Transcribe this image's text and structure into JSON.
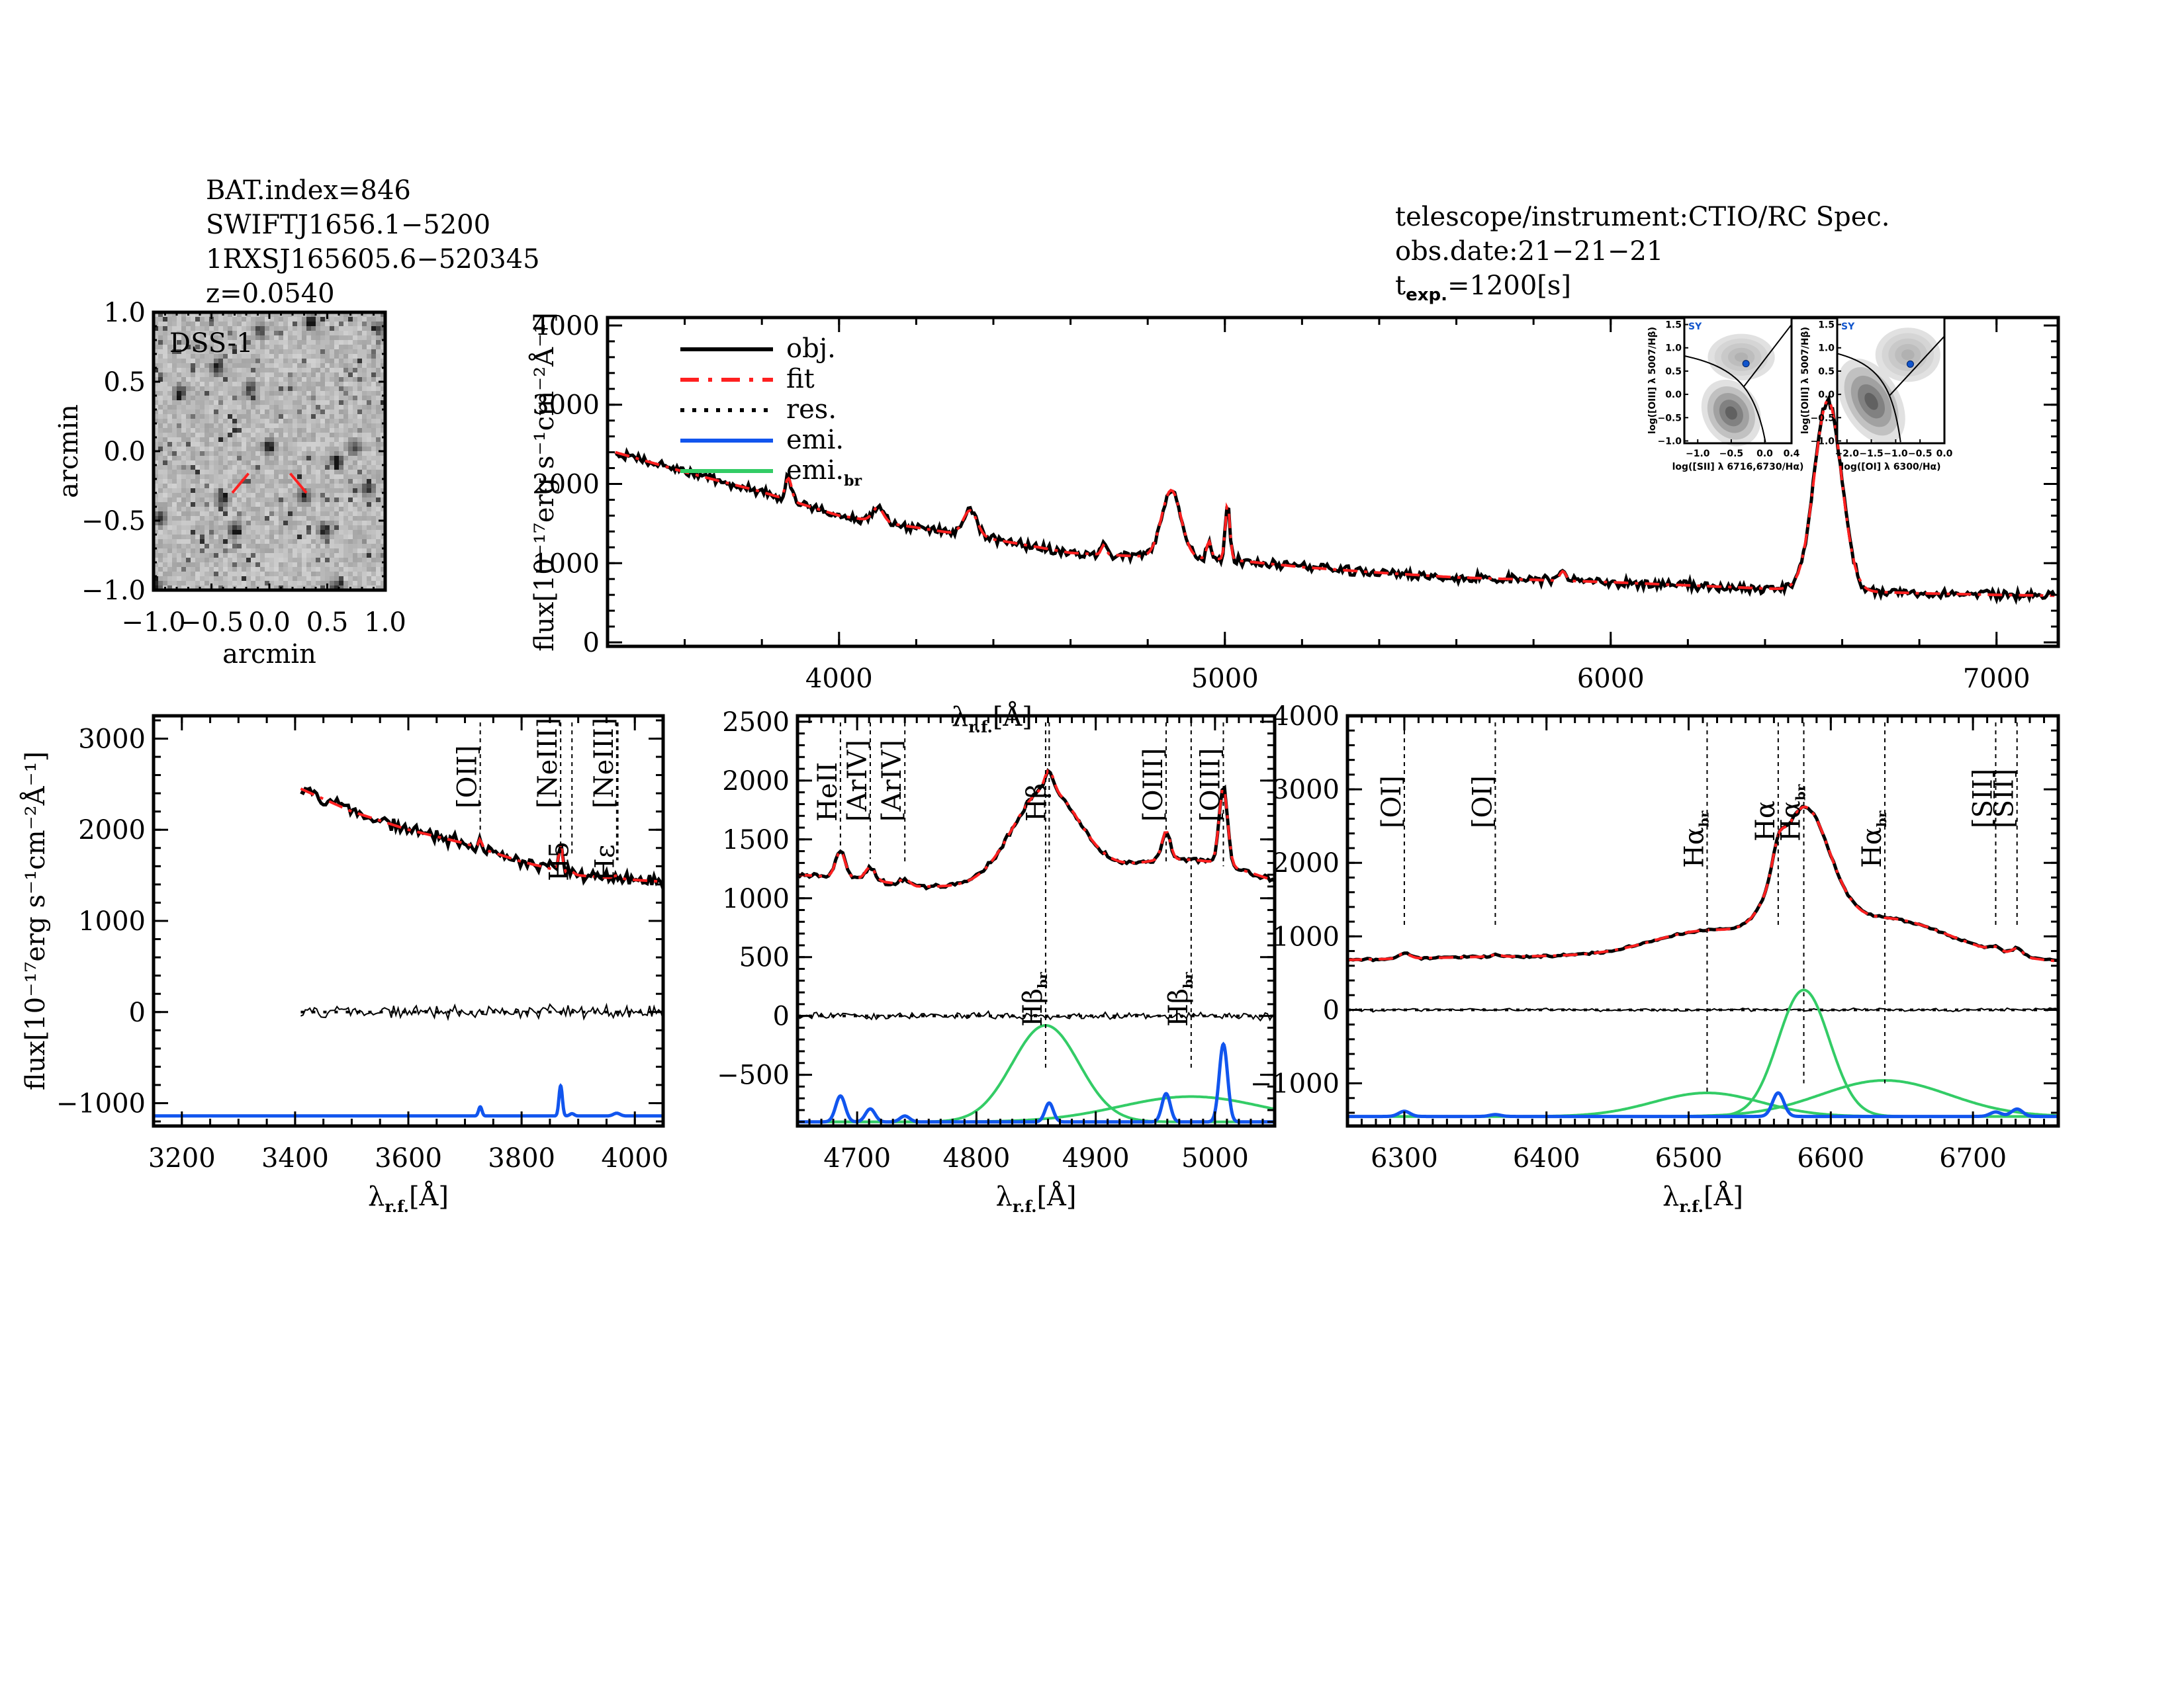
{
  "header_left": {
    "lines": [
      "BAT.index=846",
      "SWIFTJ1656.1−5200",
      "1RXSJ165605.6−520345",
      "z=0.0540"
    ]
  },
  "header_right": {
    "telescope": "telescope/instrument:CTIO/RC Spec.",
    "obs_date": "obs.date:21−21−21",
    "texp_main": "t",
    "texp_sub": "exp.",
    "texp_value": "=1200[s]"
  },
  "colors": {
    "obj": "#000000",
    "fit": "#ff2020",
    "res": "#000000",
    "emi": "#1155ee",
    "emi_br": "#33cc66",
    "marker": "#ff2020",
    "bpt_point": "#1155cc",
    "bpt_label": "#1155cc"
  },
  "chart_data": [
    {
      "id": "dss-image",
      "type": "heatmap",
      "title": "DSS-1",
      "xlabel": "arcmin",
      "ylabel": "arcmin",
      "xlim": [
        -1.0,
        1.0
      ],
      "ylim": [
        -1.0,
        1.0
      ],
      "xticks": [
        "−1.0",
        "−0.5",
        "0.0",
        "0.5",
        "1.0"
      ],
      "yticks": [
        "−1.0",
        "−0.5",
        "0.0",
        "0.5",
        "1.0"
      ],
      "xtick_values": [
        -1.0,
        -0.5,
        0.0,
        0.5,
        1.0
      ],
      "ytick_values": [
        -1.0,
        -0.5,
        0.0,
        0.5,
        1.0
      ],
      "bright_sources": [
        {
          "x": 0.36,
          "y": 0.93,
          "s": 1.0
        },
        {
          "x": 0.0,
          "y": 0.03,
          "s": 0.9
        },
        {
          "x": 0.58,
          "y": -0.07,
          "s": 0.9
        },
        {
          "x": -0.77,
          "y": 0.42,
          "s": 0.8
        },
        {
          "x": -0.45,
          "y": 0.6,
          "s": 0.8
        },
        {
          "x": 0.3,
          "y": -0.32,
          "s": 0.8
        },
        {
          "x": -0.3,
          "y": -0.57,
          "s": 0.8
        },
        {
          "x": 0.48,
          "y": -0.57,
          "s": 0.8
        },
        {
          "x": 0.57,
          "y": -0.99,
          "s": 0.8
        },
        {
          "x": -0.98,
          "y": -0.97,
          "s": 0.7
        },
        {
          "x": -0.95,
          "y": -0.48,
          "s": 0.7
        },
        {
          "x": 0.85,
          "y": -0.27,
          "s": 0.7
        },
        {
          "x": -0.17,
          "y": 0.45,
          "s": 0.7
        },
        {
          "x": -0.4,
          "y": -0.35,
          "s": 0.7
        },
        {
          "x": 0.95,
          "y": 0.88,
          "s": 0.6
        },
        {
          "x": 0.74,
          "y": 0.02,
          "s": 0.6
        },
        {
          "x": -0.08,
          "y": 0.87,
          "s": 0.7
        }
      ]
    },
    {
      "id": "full-spectrum",
      "type": "line",
      "xlabel": "λ",
      "xlabel_sub": "r.f.",
      "xlabel_unit": "[Å]",
      "ylabel": "flux[10⁻¹⁷erg s⁻¹cm⁻²Å⁻¹]",
      "xlim": [
        3400,
        7160
      ],
      "ylim": [
        -50,
        4100
      ],
      "xticks": [
        4000,
        5000,
        6000,
        7000
      ],
      "yticks": [
        0,
        1000,
        2000,
        3000,
        4000
      ],
      "legend": {
        "position": "top-left",
        "entries": [
          {
            "key": "obj",
            "label": "obj."
          },
          {
            "key": "fit",
            "label": "fit"
          },
          {
            "key": "res",
            "label": "res."
          },
          {
            "key": "emi",
            "label": "emi."
          },
          {
            "key": "emi_br",
            "label": "emi.",
            "sub": "br"
          }
        ]
      },
      "continuum": {
        "x": [
          3420,
          3600,
          3800,
          4000,
          4200,
          4400,
          4600,
          4800,
          5000,
          5200,
          5400,
          5600,
          5800,
          6000,
          6200,
          6400,
          6600,
          6800,
          7000,
          7150
        ],
        "y": [
          2400,
          2150,
          1900,
          1600,
          1450,
          1300,
          1130,
          1080,
          1050,
          950,
          880,
          820,
          790,
          760,
          720,
          680,
          650,
          620,
          600,
          590
        ]
      },
      "lines": [
        {
          "center": 3869,
          "amp": 280,
          "sigma": 8
        },
        {
          "center": 4101,
          "amp": 180,
          "sigma": 14
        },
        {
          "center": 4340,
          "amp": 320,
          "sigma": 18
        },
        {
          "center": 4686,
          "amp": 120,
          "sigma": 6
        },
        {
          "center": 4861,
          "amp": 850,
          "sigma": 25
        },
        {
          "center": 4959,
          "amp": 220,
          "sigma": 6
        },
        {
          "center": 5007,
          "amp": 700,
          "sigma": 6
        },
        {
          "center": 5876,
          "amp": 120,
          "sigma": 8
        },
        {
          "center": 6563,
          "amp": 2400,
          "sigma": 35
        }
      ]
    },
    {
      "id": "panel-oii",
      "type": "line",
      "xlabel": "λ",
      "xlabel_sub": "r.f.",
      "xlabel_unit": "[Å]",
      "ylabel": "flux[10⁻¹⁷erg s⁻¹cm⁻²Å⁻¹]",
      "xlim": [
        3150,
        4050
      ],
      "ylim": [
        -1250,
        3250
      ],
      "xticks": [
        3200,
        3400,
        3600,
        3800,
        4000
      ],
      "yticks": [
        -1000,
        0,
        1000,
        2000,
        3000
      ],
      "data_start": 3410,
      "continuum": {
        "x": [
          3410,
          3500,
          3600,
          3700,
          3800,
          3900,
          4000,
          4050
        ],
        "y": [
          2450,
          2200,
          2000,
          1850,
          1650,
          1500,
          1450,
          1430
        ]
      },
      "emi_baseline": -1140,
      "emi_lines": [
        {
          "center": 3727,
          "amp": 100,
          "sigma": 3
        },
        {
          "center": 3869,
          "amp": 330,
          "sigma": 3
        },
        {
          "center": 3889,
          "amp": 25,
          "sigma": 4
        },
        {
          "center": 3968,
          "amp": 30,
          "sigma": 6
        }
      ],
      "line_markers": [
        {
          "x": 3727,
          "label": "[OII]"
        },
        {
          "x": 3869,
          "label": "[NeIII]"
        },
        {
          "x": 3889,
          "label": "H5"
        },
        {
          "x": 3968,
          "label": "[NeIII]"
        },
        {
          "x": 3970,
          "label": "Hε"
        }
      ]
    },
    {
      "id": "panel-hbeta",
      "type": "line",
      "xlabel": "λ",
      "xlabel_sub": "r.f.",
      "xlabel_unit": "[Å]",
      "xlim": [
        4650,
        5050
      ],
      "ylim": [
        -935,
        2550
      ],
      "xticks": [
        4700,
        4800,
        4900,
        5000
      ],
      "yticks": [
        -500,
        0,
        500,
        1000,
        1500,
        2000,
        2500
      ],
      "continuum": {
        "x": [
          4650,
          4700,
          4750,
          4800,
          4850,
          4900,
          4950,
          5000,
          5050
        ],
        "y": [
          1200,
          1170,
          1100,
          1090,
          1080,
          1100,
          1130,
          1100,
          1040
        ]
      },
      "emi_baseline": -900,
      "emi_lines": [
        {
          "center": 4686,
          "amp": 220,
          "sigma": 4
        },
        {
          "center": 4711,
          "amp": 110,
          "sigma": 4
        },
        {
          "center": 4740,
          "amp": 50,
          "sigma": 4
        },
        {
          "center": 4861,
          "amp": 160,
          "sigma": 3.5
        },
        {
          "center": 4959,
          "amp": 240,
          "sigma": 3.5
        },
        {
          "center": 5007,
          "amp": 660,
          "sigma": 3.5
        }
      ],
      "broad_lines": [
        {
          "center": 4858,
          "amp": 820,
          "sigma": 28
        },
        {
          "center": 4980,
          "amp": 215,
          "sigma": 60
        }
      ],
      "line_markers": [
        {
          "x": 4686,
          "label": "HeII",
          "pos": "top"
        },
        {
          "x": 4711,
          "label": "[ArIV]",
          "pos": "top"
        },
        {
          "x": 4740,
          "label": "[ArIV]",
          "pos": "top"
        },
        {
          "x": 4861,
          "label": "Hβ",
          "pos": "top"
        },
        {
          "x": 4959,
          "label": "[OIII]",
          "pos": "top"
        },
        {
          "x": 5007,
          "label": "[OIII]",
          "pos": "top"
        },
        {
          "x": 4858,
          "label": "Hβ",
          "sub": "br",
          "pos": "mid"
        },
        {
          "x": 4980,
          "label": "Hβ",
          "sub": "br",
          "pos": "mid"
        }
      ]
    },
    {
      "id": "panel-halpha",
      "type": "line",
      "xlabel": "λ",
      "xlabel_sub": "r.f.",
      "xlabel_unit": "[Å]",
      "xlim": [
        6260,
        6760
      ],
      "ylim": [
        -1580,
        4000
      ],
      "xticks": [
        6300,
        6400,
        6500,
        6600,
        6700
      ],
      "yticks": [
        -1000,
        0,
        1000,
        2000,
        3000,
        4000
      ],
      "continuum": {
        "x": [
          6260,
          6350,
          6450,
          6550,
          6650,
          6760
        ],
        "y": [
          680,
          720,
          740,
          760,
          750,
          650
        ]
      },
      "emi_baseline": -1450,
      "emi_lines": [
        {
          "center": 6300,
          "amp": 70,
          "sigma": 4
        },
        {
          "center": 6364,
          "amp": 25,
          "sigma": 4
        },
        {
          "center": 6563,
          "amp": 320,
          "sigma": 4
        },
        {
          "center": 6716,
          "amp": 60,
          "sigma": 4
        },
        {
          "center": 6731,
          "amp": 100,
          "sigma": 4
        }
      ],
      "broad_lines": [
        {
          "center": 6513,
          "amp": 320,
          "sigma": 38
        },
        {
          "center": 6581,
          "amp": 1720,
          "sigma": 18
        },
        {
          "center": 6638,
          "amp": 490,
          "sigma": 45
        }
      ],
      "line_markers": [
        {
          "x": 6300,
          "label": "[OI]",
          "pos": "top"
        },
        {
          "x": 6364,
          "label": "[OI]",
          "pos": "top"
        },
        {
          "x": 6513,
          "label": "Hα",
          "sub": "br",
          "pos": "top2"
        },
        {
          "x": 6563,
          "label": "Hα",
          "pos": "top3"
        },
        {
          "x": 6581,
          "label": "Hα",
          "sub": "br",
          "pos": "top3"
        },
        {
          "x": 6638,
          "label": "Hα",
          "sub": "br",
          "pos": "top2"
        },
        {
          "x": 6716,
          "label": "[SII]",
          "pos": "top"
        },
        {
          "x": 6731,
          "label": "[SII]",
          "pos": "top"
        }
      ]
    },
    {
      "id": "bpt-sii",
      "type": "heatmap",
      "label": "SY",
      "xlabel": "log([SII] λ 6716,6730/Hα)",
      "ylabel": "log([OIII] λ 5007/Hβ)",
      "xlim": [
        -1.2,
        0.4
      ],
      "ylim": [
        -1.05,
        1.65
      ],
      "xticks": [
        "−1.0",
        "−0.5",
        "0.0",
        "0.4"
      ],
      "xtick_values": [
        -1.0,
        -0.5,
        0.0,
        0.4
      ],
      "yticks": [
        "−1.0",
        "−0.5",
        "0.0",
        "0.5",
        "1.0",
        "1.5"
      ],
      "ytick_values": [
        -1.0,
        -0.5,
        0.0,
        0.5,
        1.0,
        1.5
      ],
      "point": {
        "x": -0.28,
        "y": 0.66
      },
      "density_peaks": [
        {
          "x": -0.5,
          "y": -0.4,
          "w": 0.25,
          "h": 0.45
        },
        {
          "x": -0.35,
          "y": 0.8,
          "w": 0.3,
          "h": 0.3
        }
      ]
    },
    {
      "id": "bpt-oi",
      "type": "heatmap",
      "label": "SY",
      "xlabel": "log([OI] λ 6300/Hα)",
      "ylabel": "log([OIII] λ 5007/Hβ)",
      "xlim": [
        -2.2,
        0.0
      ],
      "ylim": [
        -1.05,
        1.65
      ],
      "xticks": [
        "−2.0",
        "−1.5",
        "−1.0",
        "−0.5",
        "0.0"
      ],
      "xtick_values": [
        -2.0,
        -1.5,
        -1.0,
        -0.5,
        0.0
      ],
      "yticks": [
        "−1.0",
        "−0.5",
        "0.0",
        "0.5",
        "1.0",
        "1.5"
      ],
      "ytick_values": [
        -1.0,
        -0.5,
        0.0,
        0.5,
        1.0,
        1.5
      ],
      "point": {
        "x": -0.7,
        "y": 0.65
      },
      "density_peaks": [
        {
          "x": -1.5,
          "y": -0.15,
          "w": 0.35,
          "h": 0.6
        },
        {
          "x": -0.75,
          "y": 0.85,
          "w": 0.4,
          "h": 0.35
        }
      ]
    }
  ]
}
